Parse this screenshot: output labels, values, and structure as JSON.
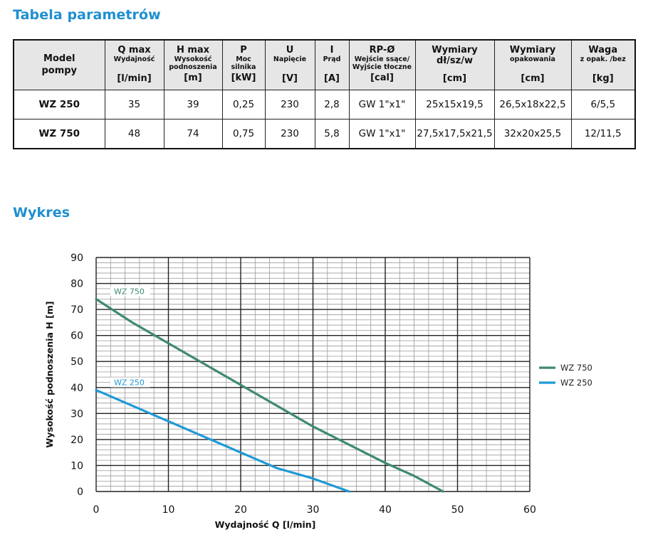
{
  "titles": {
    "table": "Tabela parametrów",
    "chart": "Wykres"
  },
  "table": {
    "model_header": [
      "Model",
      "pompy"
    ],
    "columns": [
      {
        "main": "Q max",
        "sub": [
          "Wydajność"
        ],
        "unit": "[l/min]"
      },
      {
        "main": "H max",
        "sub": [
          "Wysokość",
          "podnoszenia"
        ],
        "unit": "[m]"
      },
      {
        "main": "P",
        "sub": [
          "Moc",
          "silnika"
        ],
        "unit": "[kW]"
      },
      {
        "main": "U",
        "sub": [
          "Napięcie"
        ],
        "unit": "[V]"
      },
      {
        "main": "I",
        "sub": [
          "Prąd"
        ],
        "unit": "[A]"
      },
      {
        "main": "RP-Ø",
        "sub": [
          "Wejście ssące/",
          "Wyjście tłoczne"
        ],
        "unit": "[cal]"
      },
      {
        "main": "Wymiary",
        "main2": "dł/sz/w",
        "sub": [],
        "unit": "[cm]"
      },
      {
        "main": "Wymiary",
        "sub": [
          "opakowania"
        ],
        "unit": "[cm]"
      },
      {
        "main": "Waga",
        "sub": [
          "z opak. /bez"
        ],
        "unit": "[kg]"
      }
    ],
    "rows": [
      [
        "WZ 250",
        "35",
        "39",
        "0,25",
        "230",
        "2,8",
        "GW 1\"x1\"",
        "25x15x19,5",
        "26,5x18x22,5",
        "6/5,5"
      ],
      [
        "WZ 750",
        "48",
        "74",
        "0,75",
        "230",
        "5,8",
        "GW 1\"x1\"",
        "27,5x17,5x21,5",
        "32x20x25,5",
        "12/11,5"
      ]
    ]
  },
  "chart_data": {
    "type": "line",
    "title": "",
    "xlabel": "Wydajność Q [l/min]",
    "ylabel": "Wysokość podnoszenia H [m]",
    "xlim": [
      0,
      60
    ],
    "ylim": [
      0,
      90
    ],
    "x_ticks": [
      0,
      10,
      20,
      30,
      40,
      50,
      60
    ],
    "y_ticks": [
      0,
      10,
      20,
      30,
      40,
      50,
      60,
      70,
      80,
      90
    ],
    "grid": true,
    "legend_position": "right",
    "series": [
      {
        "name": "WZ 750",
        "color": "#3f8a70",
        "points": [
          [
            0,
            74
          ],
          [
            5,
            65
          ],
          [
            10,
            57
          ],
          [
            20,
            41
          ],
          [
            30,
            25
          ],
          [
            40,
            11
          ],
          [
            44,
            6
          ],
          [
            48,
            0
          ]
        ]
      },
      {
        "name": "WZ 250",
        "color": "#1e9ad6",
        "points": [
          [
            0,
            39
          ],
          [
            10,
            27
          ],
          [
            20,
            15
          ],
          [
            25,
            9
          ],
          [
            30,
            5
          ],
          [
            35,
            0
          ]
        ]
      }
    ]
  }
}
